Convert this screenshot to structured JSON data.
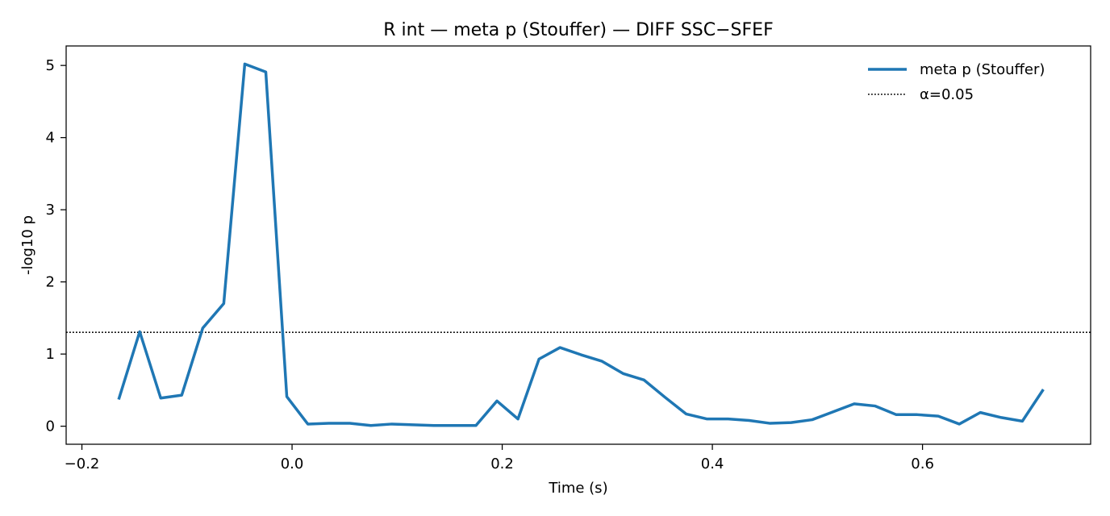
{
  "chart_data": {
    "type": "line",
    "title": "R int — meta p (Stouffer) — DIFF SSC−SFEF",
    "xlabel": "Time (s)",
    "ylabel": "-log10 p",
    "xlim": [
      -0.215,
      0.76
    ],
    "ylim": [
      -0.25,
      5.27
    ],
    "xticks": [
      -0.2,
      0.0,
      0.2,
      0.4,
      0.6
    ],
    "xtick_labels": [
      "−0.2",
      "0.0",
      "0.2",
      "0.4",
      "0.6"
    ],
    "yticks": [
      0,
      1,
      2,
      3,
      4,
      5
    ],
    "ytick_labels": [
      "0",
      "1",
      "2",
      "3",
      "4",
      "5"
    ],
    "grid": false,
    "legend_position": "top-right",
    "series": [
      {
        "name": "meta p (Stouffer)",
        "color": "#1f77b4",
        "x": [
          -0.165,
          -0.145,
          -0.125,
          -0.105,
          -0.085,
          -0.065,
          -0.045,
          -0.025,
          -0.005,
          0.015,
          0.035,
          0.055,
          0.075,
          0.095,
          0.115,
          0.135,
          0.155,
          0.175,
          0.195,
          0.215,
          0.235,
          0.255,
          0.275,
          0.295,
          0.315,
          0.335,
          0.355,
          0.375,
          0.395,
          0.415,
          0.435,
          0.455,
          0.475,
          0.495,
          0.515,
          0.535,
          0.555,
          0.575,
          0.595,
          0.615,
          0.635,
          0.655,
          0.675,
          0.695,
          0.715
        ],
        "y": [
          0.37,
          1.31,
          0.39,
          0.43,
          1.36,
          1.7,
          5.02,
          4.91,
          0.41,
          0.03,
          0.04,
          0.04,
          0.01,
          0.03,
          0.02,
          0.01,
          0.01,
          0.01,
          0.35,
          0.1,
          0.93,
          1.09,
          0.99,
          0.9,
          0.73,
          0.64,
          0.4,
          0.17,
          0.1,
          0.1,
          0.08,
          0.04,
          0.05,
          0.09,
          0.2,
          0.31,
          0.28,
          0.16,
          0.16,
          0.14,
          0.03,
          0.19,
          0.12,
          0.07,
          0.51
        ]
      }
    ],
    "reference_lines": [
      {
        "name": "α=0.05",
        "orientation": "horizontal",
        "y": 1.30103,
        "color": "#000000",
        "style": "dotted"
      }
    ]
  }
}
